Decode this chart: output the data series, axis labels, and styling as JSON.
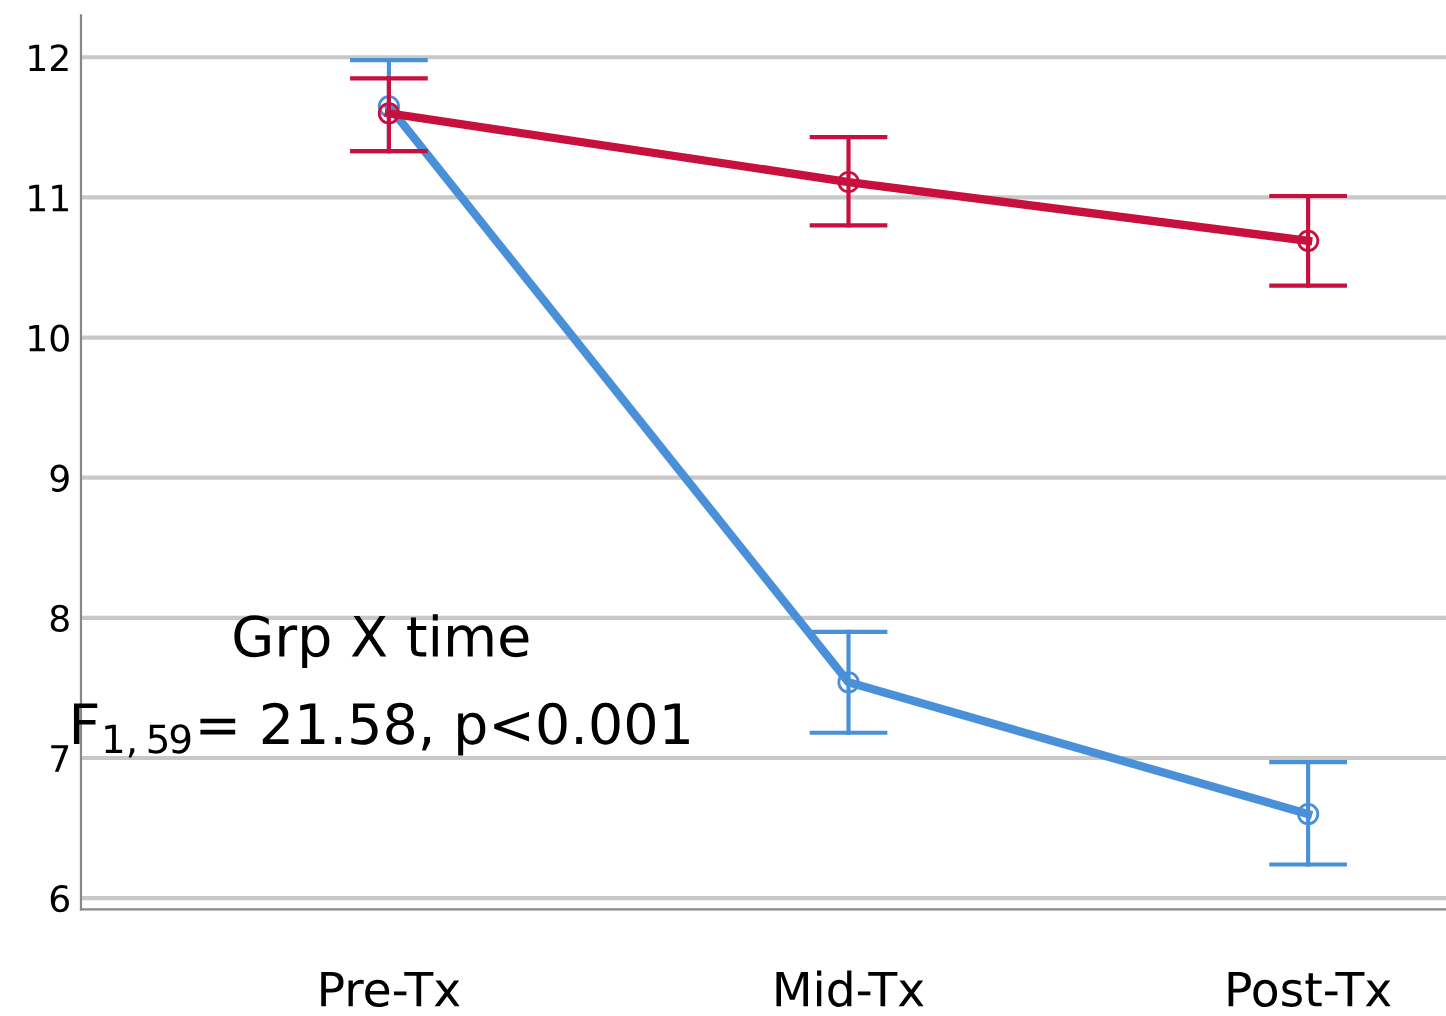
{
  "chart_data": {
    "type": "line",
    "categories": [
      "Pre-Tx",
      "Mid-Tx",
      "Post-Tx"
    ],
    "series": [
      {
        "color": "#4a90d9",
        "values": [
          11.65,
          7.54,
          6.6
        ],
        "errors": [
          [
            11.33,
            11.98
          ],
          [
            7.18,
            7.9
          ],
          [
            6.24,
            6.97
          ]
        ]
      },
      {
        "color": "#c8103e",
        "values": [
          11.6,
          11.11,
          10.69
        ],
        "errors": [
          [
            11.33,
            11.85
          ],
          [
            10.8,
            11.43
          ],
          [
            10.37,
            11.01
          ]
        ]
      }
    ],
    "ylim": [
      5.92,
      12.3
    ],
    "yticks": [
      6,
      7,
      8,
      9,
      10,
      11,
      12
    ],
    "grid": "y",
    "marker": "circle",
    "line_style": "solid",
    "annotations": [
      "Grp X time",
      "F$_{1,59}$= 21.58, p<0.001"
    ]
  }
}
